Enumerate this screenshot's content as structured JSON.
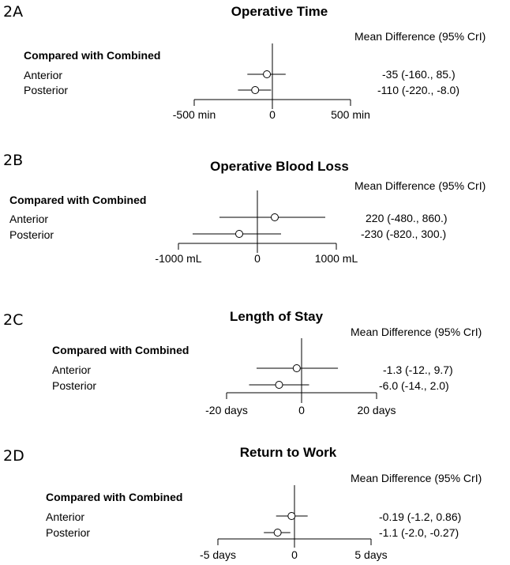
{
  "header_label": "Mean Difference (95% CrI)",
  "group_label": "Compared with Combined",
  "chart_data": [
    {
      "type": "forest",
      "panel": "2A",
      "title": "Operative Time",
      "xlim": [
        -500,
        500
      ],
      "ticks": [
        -500,
        0,
        500
      ],
      "tick_labels": [
        "-500 min",
        "0",
        "500 min"
      ],
      "rows": [
        {
          "label": "Anterior",
          "mean": -35,
          "lower": -160,
          "upper": 85,
          "text": "-35 (-160., 85.)"
        },
        {
          "label": "Posterior",
          "mean": -110,
          "lower": -220,
          "upper": -8,
          "text": "-110 (-220., -8.0)"
        }
      ]
    },
    {
      "type": "forest",
      "panel": "2B",
      "title": "Operative Blood Loss",
      "xlim": [
        -1000,
        1000
      ],
      "ticks": [
        -1000,
        0,
        1000
      ],
      "tick_labels": [
        "-1000 mL",
        "0",
        "1000 mL"
      ],
      "rows": [
        {
          "label": "Anterior",
          "mean": 220,
          "lower": -480,
          "upper": 860,
          "text": "220 (-480., 860.)"
        },
        {
          "label": "Posterior",
          "mean": -230,
          "lower": -820,
          "upper": 300,
          "text": "-230 (-820., 300.)"
        }
      ]
    },
    {
      "type": "forest",
      "panel": "2C",
      "title": "Length of Stay",
      "xlim": [
        -20,
        20
      ],
      "ticks": [
        -20,
        0,
        20
      ],
      "tick_labels": [
        "-20 days",
        "0",
        "20 days"
      ],
      "rows": [
        {
          "label": "Anterior",
          "mean": -1.3,
          "lower": -12,
          "upper": 9.7,
          "text": "-1.3 (-12., 9.7)"
        },
        {
          "label": "Posterior",
          "mean": -6.0,
          "lower": -14,
          "upper": 2.0,
          "text": "-6.0 (-14., 2.0)"
        }
      ]
    },
    {
      "type": "forest",
      "panel": "2D",
      "title": "Return to Work",
      "xlim": [
        -5,
        5
      ],
      "ticks": [
        -5,
        0,
        5
      ],
      "tick_labels": [
        "-5 days",
        "0",
        "5 days"
      ],
      "rows": [
        {
          "label": "Anterior",
          "mean": -0.19,
          "lower": -1.2,
          "upper": 0.86,
          "text": "-0.19 (-1.2, 0.86)"
        },
        {
          "label": "Posterior",
          "mean": -1.1,
          "lower": -2.0,
          "upper": -0.27,
          "text": "-1.1 (-2.0, -0.27)"
        }
      ]
    }
  ]
}
